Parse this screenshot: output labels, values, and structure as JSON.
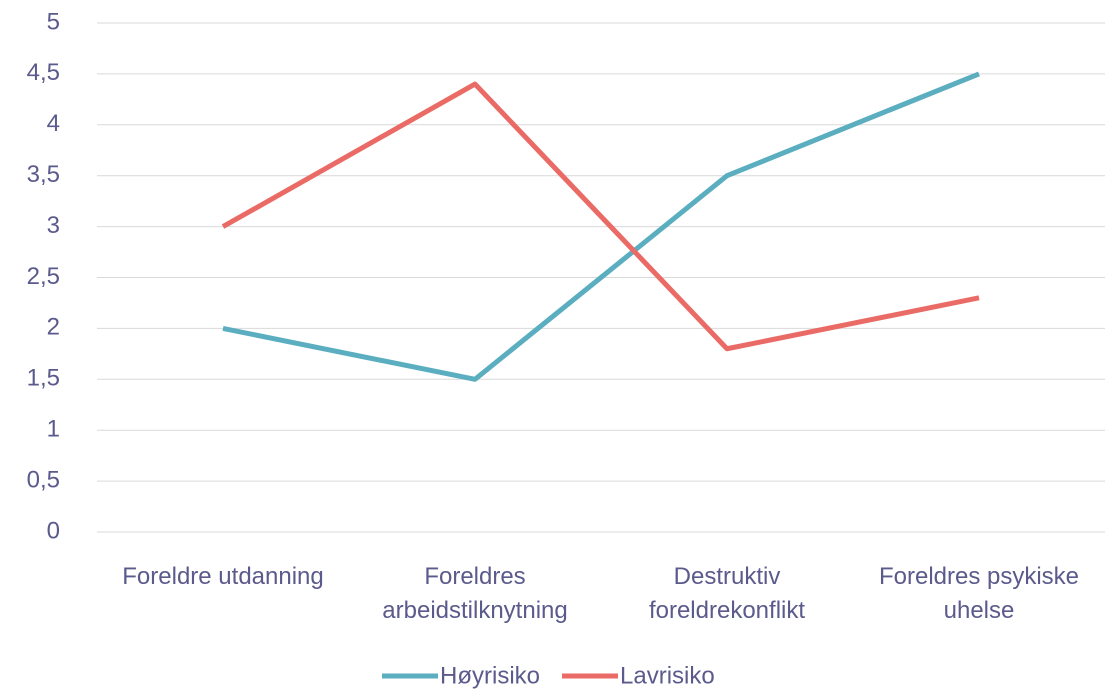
{
  "chart_data": {
    "type": "line",
    "categories": [
      "Foreldre utdanning",
      "Foreldres arbeidstilknytning",
      "Destruktiv foreldrekonflikt",
      "Foreldres psykiske uhelse"
    ],
    "series": [
      {
        "name": "Høyrisiko",
        "color": "#5aaebf",
        "values": [
          2,
          1.5,
          3.5,
          4.5
        ]
      },
      {
        "name": "Lavrisiko",
        "color": "#ea6b66",
        "values": [
          3,
          4.4,
          1.8,
          2.3
        ]
      }
    ],
    "ylim": [
      0,
      5
    ],
    "yticks": [
      0,
      {
        "value": 0.5,
        "label": "0,5"
      },
      1,
      {
        "value": 1.5,
        "label": "1,5"
      },
      2,
      {
        "value": 2.5,
        "label": "2,5"
      },
      3,
      {
        "value": 3.5,
        "label": "3,5"
      },
      4,
      {
        "value": 4.5,
        "label": "4,5"
      },
      5
    ],
    "grid": true,
    "legend": "bottom"
  }
}
